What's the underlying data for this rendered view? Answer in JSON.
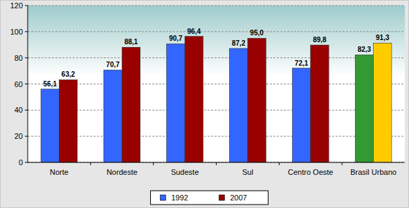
{
  "chart_data": {
    "type": "bar",
    "categories": [
      "Norte",
      "Nordeste",
      "Sudeste",
      "Sul",
      "Centro Oeste",
      "Brasil Urbano"
    ],
    "series": [
      {
        "name": "1992",
        "color": "#3366ff",
        "colors": [
          "#3366ff",
          "#3366ff",
          "#3366ff",
          "#3366ff",
          "#3366ff",
          "#339933"
        ],
        "values": [
          56.1,
          70.7,
          90.7,
          87.2,
          72.1,
          82.3
        ],
        "value_labels": [
          "56,1",
          "70,7",
          "90,7",
          "87,2",
          "72,1",
          "82,3"
        ]
      },
      {
        "name": "2007",
        "color": "#990000",
        "colors": [
          "#990000",
          "#990000",
          "#990000",
          "#990000",
          "#990000",
          "#ffcc00"
        ],
        "values": [
          63.2,
          88.1,
          96.4,
          95.0,
          89.8,
          91.3
        ],
        "value_labels": [
          "63,2",
          "88,1",
          "96,4",
          "95,0",
          "89,8",
          "91,3"
        ]
      }
    ],
    "ylim": [
      0,
      120
    ],
    "yticks": [
      0,
      20,
      40,
      60,
      80,
      100,
      120
    ],
    "grid": true,
    "legend": "bottom",
    "data_labels": true
  }
}
